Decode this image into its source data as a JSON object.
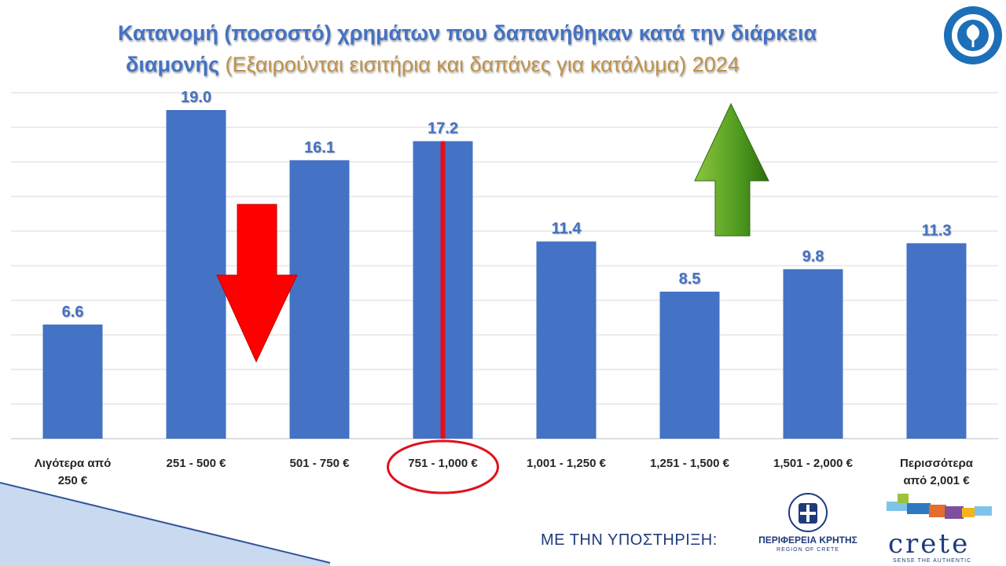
{
  "title": {
    "line1": "Κατανομή (ποσοστό) χρημάτων που δαπανήθηκαν κατά την διάρκεια",
    "line2_main": "διαμονής ",
    "line2_paren": "(Εξαιρούνται εισιτήρια και δαπάνες για κατάλυμα) 2024"
  },
  "footer": {
    "support_text": "ΜΕ ΤΗΝ ΥΠΟΣΤΗΡΙΞΗ:",
    "region_name": "ΠΕΡΙΦΕΡΕΙΑ ΚΡΗΤΗΣ",
    "region_sub": "REGION OF CRETE",
    "crete_word": "crete",
    "crete_tag": "SENSE THE AUTHENTIC"
  },
  "colors": {
    "bar": "#4472c4",
    "title": "#4472c4",
    "label": "#4472c4",
    "grid": "#d9d9d9",
    "highlight": "#e0111b",
    "up_arrow": "#4f9a1f",
    "down_arrow": "#ff0000"
  },
  "chart_data": {
    "type": "bar",
    "categories": [
      [
        "Λιγότερα από",
        "250 €"
      ],
      [
        "251 - 500 €"
      ],
      [
        "501 - 750 €"
      ],
      [
        "751 - 1,000 €"
      ],
      [
        "1,001 - 1,250 €"
      ],
      [
        "1,251 - 1,500 €"
      ],
      [
        "1,501 - 2,000 €"
      ],
      [
        "Περισσότερα",
        "από 2,001 €"
      ]
    ],
    "values": [
      6.6,
      19.0,
      16.1,
      17.2,
      11.4,
      8.5,
      9.8,
      11.3
    ],
    "value_labels": [
      "6.6",
      "19.0",
      "16.1",
      "17.2",
      "11.4",
      "8.5",
      "9.8",
      "11.3"
    ],
    "ylim": [
      0,
      20
    ],
    "grid": true,
    "highlighted_category": "751 - 1,000 €",
    "annotations": [
      {
        "type": "arrow-down",
        "color": "red"
      },
      {
        "type": "arrow-up",
        "color": "green"
      }
    ]
  }
}
